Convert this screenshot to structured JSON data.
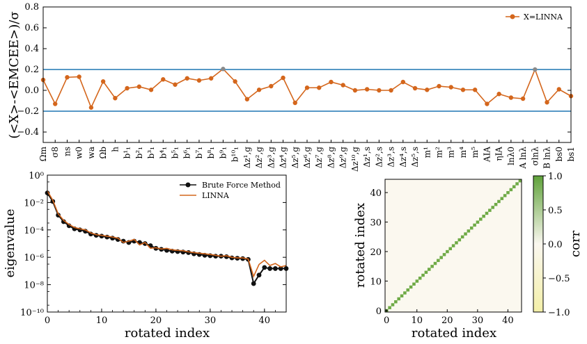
{
  "colors": {
    "orange": "#d4661c",
    "blue": "#1f77b4",
    "black": "#111111",
    "green": "#6faa46",
    "highlight": "#8a8a8a",
    "heatmap_bg": "#fbf8ef"
  },
  "chart_data": [
    {
      "type": "line",
      "ylabel": "(<X>-<EMCEE>)/σ",
      "ylim": [
        -0.5,
        0.8
      ],
      "yticks": [
        "−0.4",
        "−0.2",
        "0.0",
        "0.2",
        "0.4",
        "0.6",
        "0.8"
      ],
      "ytick_values": [
        -0.4,
        -0.2,
        0.0,
        0.2,
        0.4,
        0.6,
        0.8
      ],
      "hlines": [
        0.2,
        -0.2
      ],
      "legend": {
        "label": "X=LINNA",
        "position": "top-right"
      },
      "categories": [
        "Ωm",
        "σ8",
        "ns",
        "w0",
        "wa",
        "Ωb",
        "h",
        "b¹₁",
        "b²₁",
        "b³₁",
        "b⁴₁",
        "b⁵₁",
        "b⁶₁",
        "b⁷₁",
        "b⁸₁",
        "b⁹₁",
        "b¹⁰₁",
        "Δz¹,g",
        "Δz²,g",
        "Δz³,g",
        "Δz⁴,g",
        "Δz⁵,g",
        "Δz⁶,g",
        "Δz⁷,g",
        "Δz⁸,g",
        "Δz⁹,g",
        "Δz¹⁰,g",
        "Δz¹,s",
        "Δz²,s",
        "Δz³,s",
        "Δz⁴,s",
        "Δz⁵,s",
        "m¹",
        "m²",
        "m³",
        "m⁴",
        "m⁵",
        "AIA",
        "ηIA",
        "lnλ0",
        "A lnλ",
        "σlnλ",
        "B lnλ",
        "bs0",
        "bs1"
      ],
      "values": [
        0.1,
        -0.13,
        0.125,
        0.13,
        -0.165,
        0.085,
        -0.075,
        0.02,
        0.035,
        0.005,
        0.105,
        0.055,
        0.115,
        0.095,
        0.115,
        0.205,
        0.085,
        -0.085,
        0.005,
        0.04,
        0.12,
        -0.12,
        0.025,
        0.025,
        0.08,
        0.05,
        0.0,
        0.01,
        0.0,
        0.0,
        0.08,
        0.02,
        0.005,
        0.04,
        0.03,
        0.005,
        0.005,
        -0.13,
        -0.035,
        -0.07,
        -0.08,
        0.2,
        -0.115,
        0.01,
        -0.055
      ],
      "highlighted": [
        15,
        41
      ]
    },
    {
      "type": "line",
      "xlabel": "rotated index",
      "ylabel": "eigenvalue",
      "yscale": "log",
      "xlim": [
        0,
        44
      ],
      "xticks": [
        "0",
        "10",
        "20",
        "30",
        "40"
      ],
      "xtick_values": [
        0,
        10,
        20,
        30,
        40
      ],
      "ylim": [
        1e-10,
        1
      ],
      "yticks": [
        "10⁻¹⁰",
        "10⁻⁸",
        "10⁻⁶",
        "10⁻⁴",
        "10⁻²",
        "10⁰"
      ],
      "ytick_exps": [
        -10,
        -8,
        -6,
        -4,
        -2,
        0
      ],
      "legend_position": "top-right",
      "series": [
        {
          "name": "Brute Force Method",
          "x": [
            0,
            1,
            2,
            3,
            4,
            5,
            6,
            7,
            8,
            9,
            10,
            11,
            12,
            13,
            14,
            15,
            16,
            17,
            18,
            19,
            20,
            21,
            22,
            23,
            24,
            25,
            26,
            27,
            28,
            29,
            30,
            31,
            32,
            33,
            34,
            35,
            36,
            37,
            38,
            39,
            40,
            41,
            42,
            43,
            44
          ],
          "values": [
            0.05,
            0.012,
            0.0012,
            0.0004,
            0.0002,
            0.00012,
            0.0001,
            8e-05,
            5e-05,
            4e-05,
            3.5e-05,
            3e-05,
            2.5e-05,
            2e-05,
            1.5e-05,
            1.2e-05,
            1.5e-05,
            1.2e-05,
            1e-05,
            7e-06,
            4.5e-06,
            3.8e-06,
            3.2e-06,
            2.8e-06,
            2.6e-06,
            2.4e-06,
            2.2e-06,
            1.8e-06,
            1.6e-06,
            1.4e-06,
            1.3e-06,
            1.2e-06,
            1.2e-06,
            1.1e-06,
            9e-07,
            8.5e-07,
            8e-07,
            7e-07,
            1.2e-08,
            5e-08,
            1.8e-07,
            1.5e-07,
            1.5e-07,
            1.5e-07,
            1.5e-07
          ]
        },
        {
          "name": "LINNA",
          "x": [
            0,
            1,
            2,
            3,
            4,
            5,
            6,
            7,
            8,
            9,
            10,
            11,
            12,
            13,
            14,
            15,
            16,
            17,
            18,
            19,
            20,
            21,
            22,
            23,
            24,
            25,
            26,
            27,
            28,
            29,
            30,
            31,
            32,
            33,
            34,
            35,
            36,
            37,
            38,
            39,
            40,
            41,
            42,
            43,
            44
          ],
          "values": [
            0.07,
            0.015,
            0.0015,
            0.0005,
            0.00025,
            0.00015,
            0.00012,
            0.0001,
            6e-05,
            4.5e-05,
            4e-05,
            3.5e-05,
            3e-05,
            2.5e-05,
            1.2e-05,
            1.5e-05,
            2e-05,
            8e-06,
            1.2e-05,
            4.5e-06,
            5e-06,
            4e-06,
            4.5e-06,
            3.5e-06,
            3.2e-06,
            3e-06,
            2.5e-06,
            2.2e-06,
            2e-06,
            1.8e-06,
            1.6e-06,
            1.4e-06,
            1.2e-06,
            1.3e-06,
            1e-06,
            9e-07,
            9e-07,
            7.5e-07,
            4e-08,
            3e-07,
            6e-07,
            2.5e-07,
            3.5e-07,
            2e-07,
            2.5e-07
          ]
        }
      ]
    },
    {
      "type": "heatmap",
      "xlabel": "rotated index",
      "ylabel": "rotated index",
      "n": 45,
      "diagonal_value": 1.0,
      "off_diagonal_value": 0.0,
      "xticks": [
        "0",
        "10",
        "20",
        "30",
        "40"
      ],
      "xtick_values": [
        0,
        10,
        20,
        30,
        40
      ],
      "yticks": [
        "0",
        "10",
        "20",
        "30",
        "40"
      ],
      "ytick_values": [
        0,
        10,
        20,
        30,
        40
      ],
      "colorbar": {
        "label": "corr",
        "range": [
          -1.0,
          1.0
        ],
        "ticks": [
          "−1.0",
          "−0.5",
          "0.0",
          "0.5",
          "1.0"
        ],
        "tick_values": [
          -1.0,
          -0.5,
          0.0,
          0.5,
          1.0
        ]
      }
    }
  ]
}
